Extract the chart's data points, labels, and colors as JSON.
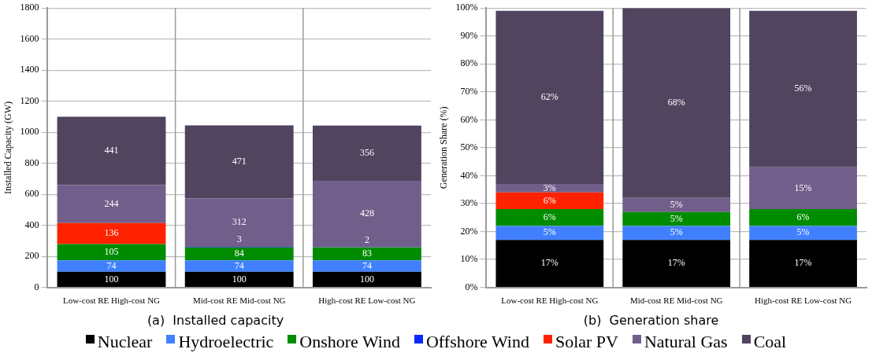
{
  "chart_data": [
    {
      "type": "bar",
      "stacked": true,
      "title": "(a)  Installed capacity",
      "ylabel": "Installed Capacity (GW)",
      "categories": [
        "Low-cost RE High-cost NG",
        "Mid-cost RE Mid-cost NG",
        "High-cost RE Low-cost NG"
      ],
      "ylim": [
        0,
        1800
      ],
      "yticks": [
        0,
        200,
        400,
        600,
        800,
        1000,
        1200,
        1400,
        1600,
        1800
      ],
      "grid": true,
      "legend": "bottom",
      "series": [
        {
          "name": "Nuclear",
          "color": "#000000",
          "values": [
            100,
            100,
            100
          ],
          "value_labels": [
            "100",
            "100",
            "100"
          ]
        },
        {
          "name": "Hydroelectric",
          "color": "#4080ff",
          "values": [
            74,
            74,
            74
          ],
          "value_labels": [
            "74",
            "74",
            "74"
          ]
        },
        {
          "name": "Onshore Wind",
          "color": "#008c00",
          "values": [
            105,
            84,
            83
          ],
          "value_labels": [
            "105",
            "84",
            "83"
          ]
        },
        {
          "name": "Offshore Wind",
          "color": "#0a28ff",
          "values": [
            0,
            3,
            2
          ],
          "value_labels": [
            null,
            "3",
            "2"
          ]
        },
        {
          "name": "Solar PV",
          "color": "#ff2200",
          "values": [
            136,
            0,
            0
          ],
          "value_labels": [
            "136",
            null,
            null
          ]
        },
        {
          "name": "Natural Gas",
          "color": "#725e8a",
          "values": [
            244,
            312,
            428
          ],
          "value_labels": [
            "244",
            "312",
            "428"
          ]
        },
        {
          "name": "Coal",
          "color": "#51445f",
          "values": [
            441,
            471,
            356
          ],
          "value_labels": [
            "441",
            "471",
            "356"
          ]
        }
      ]
    },
    {
      "type": "bar",
      "stacked": true,
      "title": "(b)  Generation share",
      "ylabel": "Generation Share (%)",
      "categories": [
        "Low-cost RE High-cost NG",
        "Mid-cost RE Mid-cost NG",
        "High-cost RE Low-cost NG"
      ],
      "ylim": [
        0,
        100
      ],
      "yticks": [
        {
          "value": 0,
          "label": "0%"
        },
        {
          "value": 10,
          "label": "10%"
        },
        {
          "value": 20,
          "label": "20%"
        },
        {
          "value": 30,
          "label": "30%"
        },
        {
          "value": 40,
          "label": "40%"
        },
        {
          "value": 50,
          "label": "50%"
        },
        {
          "value": 60,
          "label": "60%"
        },
        {
          "value": 70,
          "label": "70%"
        },
        {
          "value": 80,
          "label": "80%"
        },
        {
          "value": 90,
          "label": "90%"
        },
        {
          "value": 100,
          "label": "100%"
        }
      ],
      "grid": true,
      "series": [
        {
          "color": "#000000",
          "values": [
            17,
            17,
            17
          ],
          "value_labels": [
            "17%",
            "17%",
            "17%"
          ]
        },
        {
          "color": "#4080ff",
          "values": [
            5,
            5,
            5
          ],
          "value_labels": [
            "5%",
            "5%",
            "5%"
          ]
        },
        {
          "color": "#008c00",
          "values": [
            6,
            5,
            6
          ],
          "value_labels": [
            "6%",
            "5%",
            "6%"
          ]
        },
        {
          "color": "#0a28ff",
          "values": [
            0,
            0,
            0
          ],
          "value_labels": [
            null,
            null,
            null
          ]
        },
        {
          "color": "#ff2200",
          "values": [
            6,
            0,
            0
          ],
          "value_labels": [
            "6%",
            null,
            null
          ]
        },
        {
          "color": "#725e8a",
          "values": [
            3,
            5,
            15
          ],
          "value_labels": [
            "3%",
            "5%",
            "15%"
          ]
        },
        {
          "color": "#51445f",
          "values": [
            62,
            68,
            56
          ],
          "value_labels": [
            "62%",
            "68%",
            "56%"
          ]
        }
      ]
    }
  ]
}
